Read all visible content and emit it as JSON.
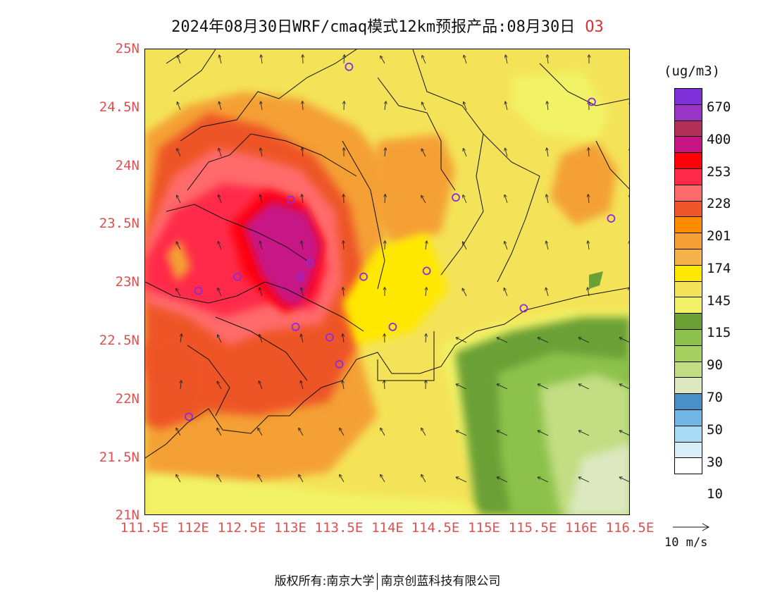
{
  "header": {
    "title": "2024年08月30日WRF/cmaq模式12km预报产品:08月30日",
    "pollutant": "O3"
  },
  "map": {
    "lat_labels": [
      "25N",
      "24.5N",
      "24N",
      "23.5N",
      "23N",
      "22.5N",
      "22N",
      "21.5N",
      "21N"
    ],
    "lon_labels": [
      "111.5E",
      "112E",
      "112.5E",
      "113E",
      "113.5E",
      "114E",
      "114.5E",
      "115E",
      "115.5E",
      "116E",
      "116.5E"
    ],
    "extent": {
      "lon": [
        111.5,
        116.5
      ],
      "lat": [
        21,
        25
      ]
    },
    "stations": [
      {
        "lon": 113.6,
        "lat": 24.85
      },
      {
        "lon": 116.1,
        "lat": 24.55
      },
      {
        "lon": 114.7,
        "lat": 23.73
      },
      {
        "lon": 116.3,
        "lat": 23.55
      },
      {
        "lon": 113.0,
        "lat": 23.71
      },
      {
        "lon": 113.2,
        "lat": 23.17
      },
      {
        "lon": 112.45,
        "lat": 23.05
      },
      {
        "lon": 113.1,
        "lat": 23.05
      },
      {
        "lon": 113.75,
        "lat": 23.05
      },
      {
        "lon": 114.4,
        "lat": 23.1
      },
      {
        "lon": 112.05,
        "lat": 22.93
      },
      {
        "lon": 115.4,
        "lat": 22.78
      },
      {
        "lon": 113.05,
        "lat": 22.62
      },
      {
        "lon": 114.05,
        "lat": 22.62
      },
      {
        "lon": 113.4,
        "lat": 22.53
      },
      {
        "lon": 113.5,
        "lat": 22.3
      },
      {
        "lon": 111.95,
        "lat": 21.85
      }
    ]
  },
  "legend": {
    "units": "(ug/m3)",
    "colors": [
      "#ffffff",
      "#d8eef8",
      "#a8dcf4",
      "#72b6e6",
      "#4a90c8",
      "#dde8c0",
      "#c2dd82",
      "#a8d060",
      "#8cc24c",
      "#6aa034",
      "#f2f266",
      "#f4e358",
      "#ffe800",
      "#f5b34a",
      "#f4a034",
      "#ff8c00",
      "#ee5528",
      "#ff6a6a",
      "#ff2a4a",
      "#ff0008",
      "#c71585",
      "#b0305a",
      "#9a34c8",
      "#8030d8"
    ],
    "labels": [
      "10",
      "30",
      "50",
      "70",
      "90",
      "115",
      "145",
      "174",
      "201",
      "228",
      "253",
      "400",
      "670"
    ],
    "wind_ref": "10 m/s"
  },
  "footer": {
    "copyright": "版权所有:南京大学",
    "company": "南京创蓝科技有限公司"
  }
}
